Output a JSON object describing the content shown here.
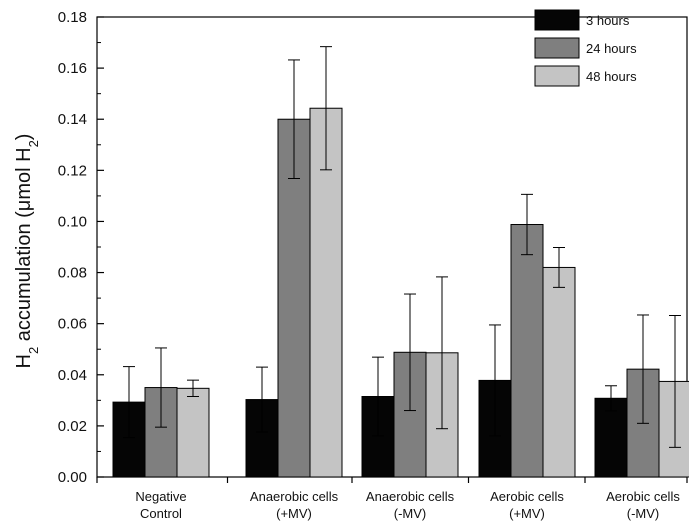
{
  "chart_data": {
    "type": "bar",
    "title": "",
    "xlabel": "",
    "ylabel": {
      "parts": [
        "H",
        "2",
        " accumulation (",
        "μ",
        "mol H",
        "2",
        ")"
      ]
    },
    "ylim": [
      0,
      0.18
    ],
    "yticks": [
      "0.00",
      "0.02",
      "0.04",
      "0.06",
      "0.08",
      "0.10",
      "0.12",
      "0.14",
      "0.16",
      "0.18"
    ],
    "categories": [
      [
        "Negative",
        "Control"
      ],
      [
        "Anaerobic cells",
        "(+MV)"
      ],
      [
        "Anaerobic cells",
        "(-MV)"
      ],
      [
        "Aerobic cells",
        "(+MV)"
      ],
      [
        "Aerobic cells",
        "(-MV)"
      ]
    ],
    "series": [
      {
        "name": "3 hours",
        "color": "#050505",
        "values": [
          0.0293,
          0.0303,
          0.0315,
          0.0378,
          0.0308
        ],
        "errors": [
          0.0139,
          0.0127,
          0.0154,
          0.0217,
          0.0049
        ]
      },
      {
        "name": "24 hours",
        "color": "#7f7f7f",
        "values": [
          0.035,
          0.14,
          0.0488,
          0.0988,
          0.0422
        ],
        "errors": [
          0.0155,
          0.0232,
          0.0228,
          0.0118,
          0.0212
        ]
      },
      {
        "name": "48 hours",
        "color": "#c4c4c4",
        "values": [
          0.0347,
          0.1443,
          0.0486,
          0.082,
          0.0374
        ],
        "errors": [
          0.0032,
          0.0241,
          0.0297,
          0.0078,
          0.0258
        ]
      }
    ],
    "legend_position": "top-right",
    "grid": false
  }
}
